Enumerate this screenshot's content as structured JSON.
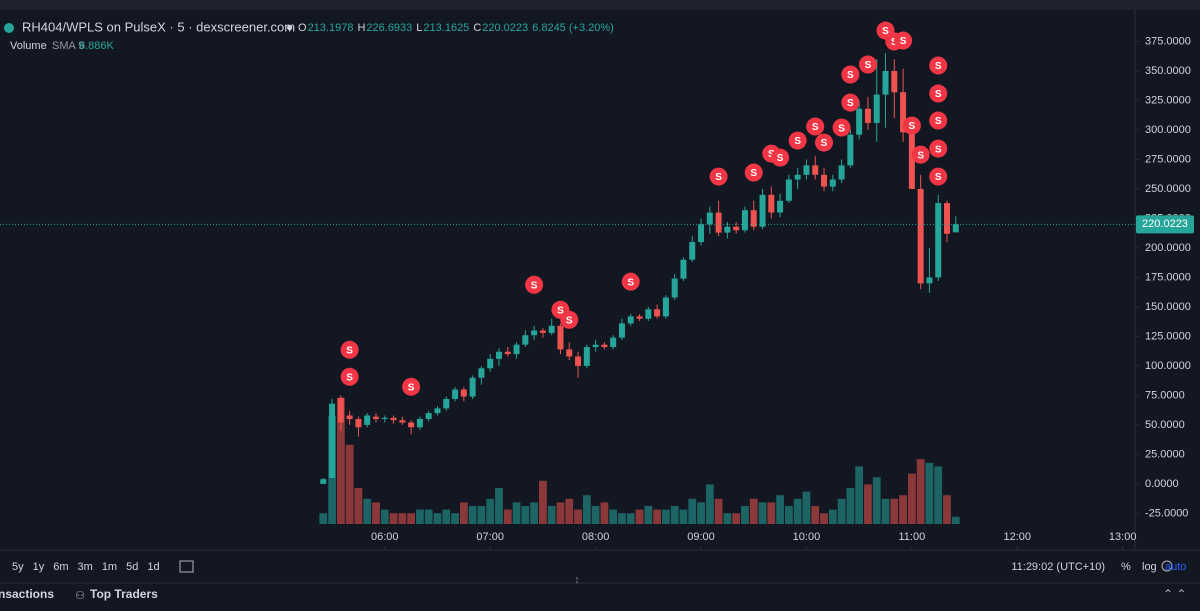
{
  "chart_data": {
    "type": "candlestick",
    "title": "RH404/WPLS on PulseX · 5 · dexscreener.com",
    "ohlc_labels": [
      "O",
      "H",
      "L",
      "C"
    ],
    "change": "6.8245 (+3.20%)",
    "volume_label": "Volume",
    "volume_sma_label": "SMA 9",
    "volume_sma_value": "6.886K",
    "up_color": "#26a69a",
    "down_color": "#ef5350",
    "marker_color": "#f23645",
    "x": [
      "05:25",
      "05:30",
      "05:35",
      "05:40",
      "05:45",
      "05:50",
      "05:55",
      "06:00",
      "06:05",
      "06:10",
      "06:15",
      "06:20",
      "06:25",
      "06:30",
      "06:35",
      "06:40",
      "06:45",
      "06:50",
      "06:55",
      "07:00",
      "07:05",
      "07:10",
      "07:15",
      "07:20",
      "07:25",
      "07:30",
      "07:35",
      "07:40",
      "07:45",
      "07:50",
      "07:55",
      "08:00",
      "08:05",
      "08:10",
      "08:15",
      "08:20",
      "08:25",
      "08:30",
      "08:35",
      "08:40",
      "08:45",
      "08:50",
      "08:55",
      "09:00",
      "09:05",
      "09:10",
      "09:15",
      "09:20",
      "09:25",
      "09:30",
      "09:35",
      "09:40",
      "09:45",
      "09:50",
      "09:55",
      "10:00",
      "10:05",
      "10:10",
      "10:15",
      "10:20",
      "10:25",
      "10:30",
      "10:35",
      "10:40",
      "10:45",
      "10:50",
      "10:55",
      "11:00",
      "11:05",
      "11:10",
      "11:15",
      "11:20",
      "11:25"
    ],
    "open": [
      0,
      5,
      73,
      58,
      55,
      50,
      57,
      55,
      56,
      54,
      52,
      48,
      55,
      60,
      64,
      72,
      80,
      74,
      90,
      98,
      106,
      112,
      110,
      118,
      126,
      130,
      128,
      134,
      114,
      108,
      100,
      116,
      118,
      116,
      124,
      136,
      142,
      140,
      148,
      142,
      158,
      174,
      190,
      205,
      220,
      230,
      213,
      218,
      215,
      232,
      218,
      245,
      230,
      240,
      258,
      262,
      270,
      262,
      252,
      258,
      270,
      296,
      318,
      306,
      330,
      350,
      332,
      298,
      250,
      170,
      175,
      238,
      213.1978
    ],
    "high": [
      5,
      72,
      75,
      62,
      57,
      60,
      60,
      58,
      58,
      57,
      54,
      57,
      62,
      66,
      74,
      82,
      82,
      92,
      100,
      110,
      115,
      116,
      120,
      130,
      134,
      132,
      140,
      136,
      120,
      112,
      118,
      122,
      120,
      126,
      140,
      144,
      144,
      150,
      152,
      160,
      178,
      192,
      210,
      225,
      235,
      240,
      222,
      222,
      235,
      240,
      250,
      252,
      246,
      262,
      268,
      275,
      278,
      268,
      262,
      275,
      300,
      325,
      328,
      360,
      365,
      360,
      352,
      310,
      262,
      200,
      245,
      240,
      226.6933
    ],
    "low": [
      0,
      5,
      45,
      50,
      40,
      48,
      52,
      52,
      51,
      50,
      42,
      46,
      53,
      58,
      62,
      70,
      70,
      72,
      84,
      95,
      100,
      108,
      106,
      116,
      122,
      124,
      126,
      110,
      105,
      90,
      98,
      112,
      114,
      114,
      122,
      134,
      138,
      138,
      140,
      140,
      156,
      172,
      188,
      202,
      212,
      210,
      208,
      212,
      213,
      215,
      216,
      225,
      226,
      238,
      250,
      258,
      258,
      248,
      248,
      255,
      268,
      292,
      300,
      290,
      302,
      310,
      290,
      250,
      165,
      162,
      172,
      205,
      213.1625
    ],
    "close": [
      4,
      68,
      52,
      55,
      48,
      58,
      55,
      56,
      54,
      52,
      48,
      55,
      60,
      64,
      72,
      80,
      74,
      90,
      98,
      106,
      112,
      110,
      118,
      126,
      130,
      128,
      134,
      114,
      108,
      100,
      116,
      118,
      116,
      124,
      136,
      142,
      140,
      148,
      142,
      158,
      174,
      190,
      205,
      220,
      230,
      213,
      218,
      215,
      232,
      218,
      245,
      230,
      240,
      258,
      262,
      270,
      262,
      252,
      258,
      270,
      296,
      318,
      306,
      330,
      350,
      332,
      298,
      250,
      170,
      175,
      238,
      212,
      220.0223
    ],
    "volume": [
      3,
      30,
      35,
      22,
      10,
      7,
      6,
      4,
      3,
      3,
      3,
      4,
      4,
      3,
      4,
      3,
      6,
      5,
      5,
      7,
      10,
      4,
      6,
      5,
      6,
      12,
      5,
      6,
      7,
      4,
      8,
      5,
      6,
      4,
      3,
      3,
      4,
      5,
      4,
      4,
      5,
      4,
      7,
      6,
      11,
      7,
      3,
      3,
      5,
      7,
      6,
      6,
      8,
      5,
      7,
      9,
      5,
      3,
      4,
      7,
      10,
      16,
      11,
      13,
      7,
      7,
      8,
      14,
      18,
      17,
      16,
      8,
      2
    ],
    "marker_label": "S",
    "markers": [
      {
        "x": "05:40",
        "y": 113.7
      },
      {
        "x": "05:40",
        "y": 90.8
      },
      {
        "x": "06:15",
        "y": 82.3
      },
      {
        "x": "07:25",
        "y": 168.8
      },
      {
        "x": "07:40",
        "y": 147.6
      },
      {
        "x": "07:45",
        "y": 139.1
      },
      {
        "x": "08:20",
        "y": 171.4
      },
      {
        "x": "09:10",
        "y": 260.5
      },
      {
        "x": "09:30",
        "y": 263.9
      },
      {
        "x": "09:40",
        "y": 280
      },
      {
        "x": "09:45",
        "y": 276.6
      },
      {
        "x": "09:55",
        "y": 291
      },
      {
        "x": "10:05",
        "y": 302.9
      },
      {
        "x": "10:10",
        "y": 289.3
      },
      {
        "x": "10:20",
        "y": 302
      },
      {
        "x": "10:25",
        "y": 323.2
      },
      {
        "x": "10:25",
        "y": 347
      },
      {
        "x": "10:35",
        "y": 355.5
      },
      {
        "x": "10:45",
        "y": 384.3
      },
      {
        "x": "10:50",
        "y": 375
      },
      {
        "x": "10:55",
        "y": 375.8
      },
      {
        "x": "11:00",
        "y": 303.7
      },
      {
        "x": "11:05",
        "y": 279.1
      },
      {
        "x": "11:15",
        "y": 354.6
      },
      {
        "x": "11:15",
        "y": 330.9
      },
      {
        "x": "11:15",
        "y": 308
      },
      {
        "x": "11:15",
        "y": 284.2
      },
      {
        "x": "11:15",
        "y": 260.5
      }
    ],
    "xlim": [
      "02:21",
      "13:07"
    ],
    "xticks": [
      "06:00",
      "07:00",
      "08:00",
      "09:00",
      "10:00",
      "11:00",
      "12:00",
      "13:00"
    ],
    "ylim": [
      -34,
      400
    ],
    "yticks": [
      {
        "value": -25,
        "label": "-25.0000"
      },
      {
        "value": 0,
        "label": "0.0000"
      },
      {
        "value": 25,
        "label": "25.0000"
      },
      {
        "value": 50,
        "label": "50.0000"
      },
      {
        "value": 75,
        "label": "75.0000"
      },
      {
        "value": 100,
        "label": "100.0000"
      },
      {
        "value": 125,
        "label": "125.0000"
      },
      {
        "value": 150,
        "label": "150.0000"
      },
      {
        "value": 175,
        "label": "175.0000"
      },
      {
        "value": 200,
        "label": "200.0000"
      },
      {
        "value": 225,
        "label": "225.0000"
      },
      {
        "value": 250,
        "label": "250.0000"
      },
      {
        "value": 275,
        "label": "275.0000"
      },
      {
        "value": 300,
        "label": "300.0000"
      },
      {
        "value": 325,
        "label": "325.0000"
      },
      {
        "value": 350,
        "label": "350.0000"
      },
      {
        "value": 375,
        "label": "375.0000"
      }
    ],
    "grid": false,
    "timeframes": [
      "5y",
      "1y",
      "6m",
      "3m",
      "1m",
      "5d",
      "1d"
    ],
    "clock": "11:29:02 (UTC+10)",
    "scale_buttons": [
      "%",
      "log",
      "auto"
    ],
    "tabs": [
      "nsactions",
      "Top Traders"
    ]
  }
}
